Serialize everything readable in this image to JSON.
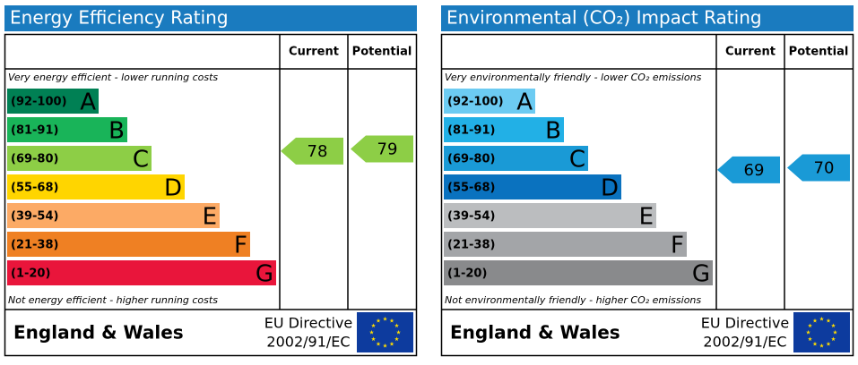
{
  "panels": [
    {
      "title": "Energy Efficiency Rating",
      "col_current": "Current",
      "col_potential": "Potential",
      "top_note": "Very energy efficient - lower running costs",
      "bottom_note": "Not energy efficient - higher running costs",
      "bands": [
        {
          "range": "(92-100)",
          "letter": "A",
          "color": "#008054"
        },
        {
          "range": "(81-91)",
          "letter": "B",
          "color": "#19b459"
        },
        {
          "range": "(69-80)",
          "letter": "C",
          "color": "#8dce46"
        },
        {
          "range": "(55-68)",
          "letter": "D",
          "color": "#ffd500"
        },
        {
          "range": "(39-54)",
          "letter": "E",
          "color": "#fcaa65"
        },
        {
          "range": "(21-38)",
          "letter": "F",
          "color": "#ef8023"
        },
        {
          "range": "(1-20)",
          "letter": "G",
          "color": "#e9153b"
        }
      ],
      "current": 78,
      "potential": 79,
      "footer_left": "England & Wales",
      "footer_right": [
        "EU Directive",
        "2002/91/EC"
      ]
    },
    {
      "title": "Environmental (CO₂) Impact Rating",
      "col_current": "Current",
      "col_potential": "Potential",
      "top_note": "Very environmentally friendly - lower CO₂ emissions",
      "bottom_note": "Not environmentally friendly - higher CO₂ emissions",
      "bands": [
        {
          "range": "(92-100)",
          "letter": "A",
          "color": "#6ccbf2"
        },
        {
          "range": "(81-91)",
          "letter": "B",
          "color": "#22b0e6"
        },
        {
          "range": "(69-80)",
          "letter": "C",
          "color": "#1a9ad6"
        },
        {
          "range": "(55-68)",
          "letter": "D",
          "color": "#0a72bf"
        },
        {
          "range": "(39-54)",
          "letter": "E",
          "color": "#bbbdbf"
        },
        {
          "range": "(21-38)",
          "letter": "F",
          "color": "#a3a5a8"
        },
        {
          "range": "(1-20)",
          "letter": "G",
          "color": "#898a8c"
        }
      ],
      "current": 69,
      "potential": 70,
      "footer_left": "England & Wales",
      "footer_right": [
        "EU Directive",
        "2002/91/EC"
      ]
    }
  ]
}
